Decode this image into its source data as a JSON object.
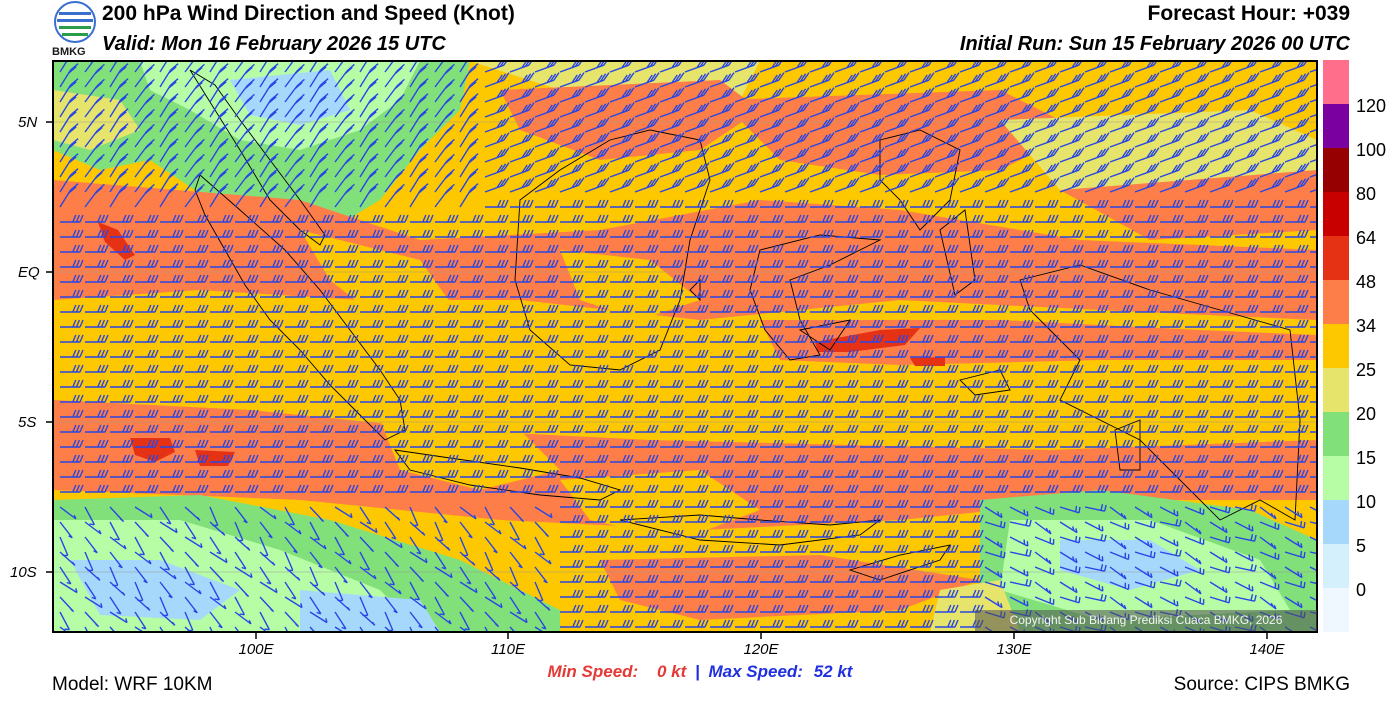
{
  "header": {
    "title": "200 hPa Wind Direction and Speed (Knot)",
    "valid": "Valid: Mon 16 February 2026 15 UTC",
    "forecast_hour": "Forecast Hour: +039",
    "initial_run": "Initial Run: Sun 15 February 2026 00 UTC"
  },
  "logo": {
    "text": "BMKG",
    "icon": "bmkg-logo-icon"
  },
  "axes": {
    "lat_labels": [
      "5N",
      "EQ",
      "5S",
      "10S"
    ],
    "lat_values": [
      5,
      0,
      -5,
      -10
    ],
    "lon_labels": [
      "100E",
      "110E",
      "120E",
      "130E",
      "140E"
    ],
    "lon_values": [
      100,
      110,
      120,
      130,
      140
    ],
    "lon_range": [
      92,
      142
    ],
    "lat_range": [
      -12,
      7
    ]
  },
  "colorbar": {
    "labels": [
      "0",
      "5",
      "10",
      "15",
      "20",
      "25",
      "34",
      "48",
      "64",
      "80",
      "100",
      "120"
    ],
    "colors": [
      "#f0f8ff",
      "#d4f0fc",
      "#a6d8fb",
      "#b6fda6",
      "#82e07a",
      "#e6e46a",
      "#fdc800",
      "#fd7e48",
      "#e63214",
      "#c80000",
      "#960000",
      "#7a00a0",
      "#ff6e8a"
    ]
  },
  "speeds": {
    "min_label": "Min Speed:",
    "min_value": "0 kt",
    "separator": "|",
    "max_label": "Max Speed:",
    "max_value": "52 kt"
  },
  "footer": {
    "model": "Model: WRF 10KM",
    "source": "Source: CIPS BMKG",
    "copyright": "Copyright Sub Bidang Prediksi Cuaca BMKG, 2026"
  },
  "colors": {
    "barb": "#2846e6",
    "coast": "#000000"
  }
}
